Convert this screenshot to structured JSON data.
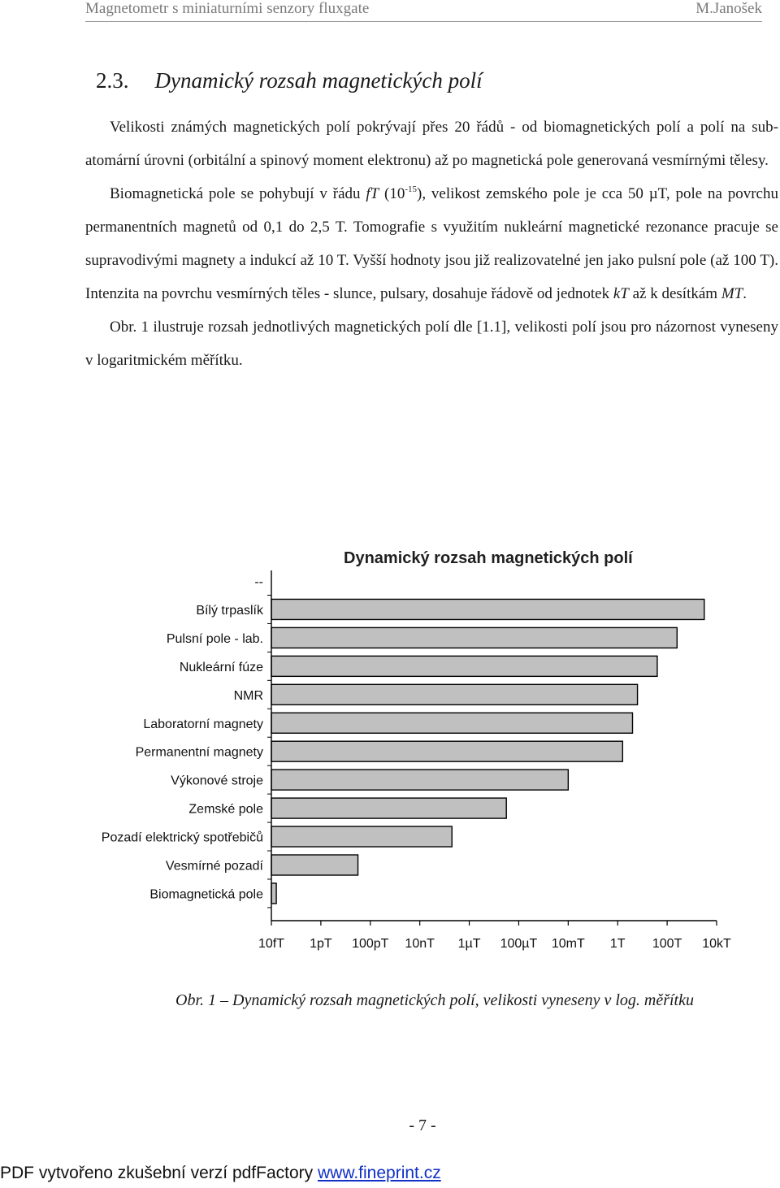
{
  "header": {
    "left": "Magnetometr s miniaturními senzory fluxgate",
    "right": "M.Janošek"
  },
  "section": {
    "number": "2.3.",
    "title": "Dynamický rozsah magnetických polí"
  },
  "paragraphs": {
    "p1": "Velikosti známých magnetických polí pokrývají přes 20 řádů - od biomagnetických polí a polí na sub-atomární úrovni (orbitální a spinový moment elektronu) až po magnetická pole generovaná vesmírnými tělesy.",
    "p2": {
      "a": "Biomagnetická pole se pohybují v řádu ",
      "a_unit": "fT",
      "b": " (10",
      "b_sup": "-15",
      "c": "), velikost zemského pole je cca 50 µT, pole na povrchu permanentních magnetů od 0,1 do 2,5 T. Tomografie s využitím nukleární magnetické rezonance pracuje se supravodivými magnety a indukcí až 10 T. Vyšší hodnoty jsou již realizovatelné jen jako pulsní pole (až 100 T). Intenzita na povrchu vesmírných těles - slunce, pulsary, dosahuje řádově od jednotek ",
      "c_unit": "kT",
      "d": " až k desítkám ",
      "d_unit": "MT",
      "e": "."
    },
    "p3": "Obr. 1 ilustruje rozsah jednotlivých magnetických polí dle [1.1], velikosti polí jsou pro názornost vyneseny v logaritmickém měřítku."
  },
  "chart_data": {
    "type": "bar",
    "orientation": "horizontal",
    "title": "Dynamický rozsah magnetických polí",
    "x_scale": "log",
    "x_ticks": [
      "10fT",
      "1pT",
      "100pT",
      "10nT",
      "1µT",
      "100µT",
      "10mT",
      "1T",
      "100T",
      "10kT"
    ],
    "x_tick_exponents": [
      -14,
      -12,
      -10,
      -8,
      -6,
      -4,
      -2,
      0,
      2,
      4
    ],
    "xlim_exponent": [
      -14,
      4
    ],
    "categories": [
      "--",
      "Bílý trpaslík",
      "Pulsní pole - lab.",
      "Nukleární fúze",
      "NMR",
      "Laboratorní magnety",
      "Permanentní magnety",
      "Výkonové stroje",
      "Zemské pole",
      "Pozadí elektrický spotřebičů",
      "Vesmírné pozadí",
      "Biomagnetická pole"
    ],
    "values_exponent": [
      null,
      3.5,
      2.4,
      1.6,
      0.8,
      0.6,
      0.2,
      -2.0,
      -4.5,
      -6.7,
      -10.5,
      -13.8
    ],
    "bar_color": "#c0c0c0",
    "bar_edge": "#000000",
    "grid": false
  },
  "caption": "Obr. 1 – Dynamický rozsah magnetických polí, velikosti vyneseny v log. měřítku",
  "page_number": "- 7 -",
  "footer": {
    "text": "PDF vytvořeno zkušební verzí pdfFactory ",
    "link": "www.fineprint.cz"
  }
}
